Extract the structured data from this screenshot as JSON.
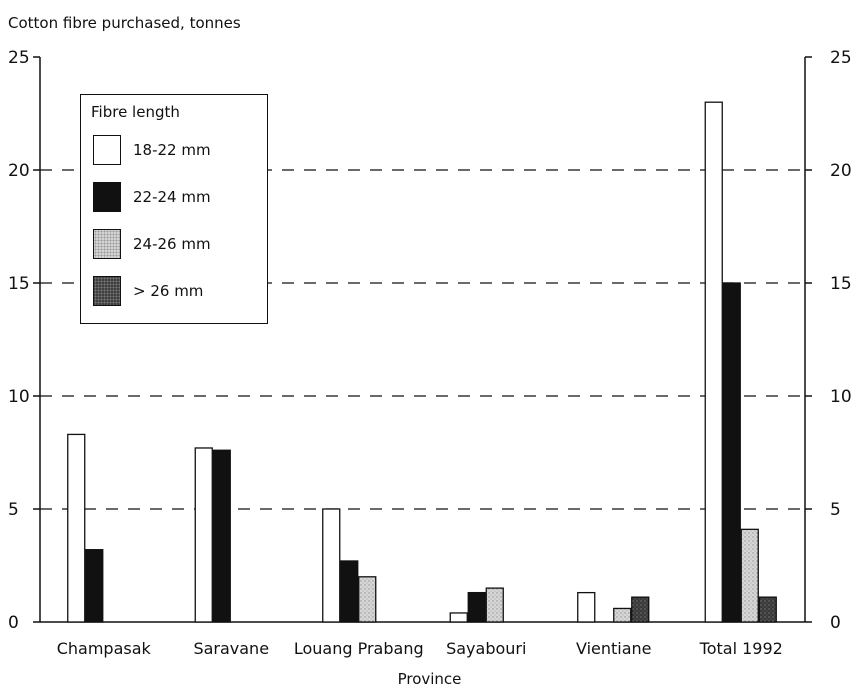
{
  "chart_data": {
    "type": "bar",
    "ylabel": "Cotton fibre purchased, tonnes",
    "xlabel": "Province",
    "ylim": [
      0,
      25
    ],
    "yticks": [
      0,
      5,
      10,
      15,
      20,
      25
    ],
    "grid": "dashed horizontal",
    "legend_title": "Fibre length",
    "legend_position": "top-left",
    "categories": [
      "Champasak",
      "Saravane",
      "Louang Prabang",
      "Sayabouri",
      "Vientiane",
      "Total 1992"
    ],
    "series": [
      {
        "name": "18-22 mm",
        "color": "#ffffff",
        "pattern": "white",
        "values": [
          8.3,
          7.7,
          5.0,
          0.4,
          1.3,
          23.0
        ]
      },
      {
        "name": "22-24 mm",
        "color": "#111111",
        "pattern": "black",
        "values": [
          3.2,
          7.6,
          2.7,
          1.3,
          0,
          15.0
        ]
      },
      {
        "name": "24-26 mm",
        "color": "#d4d4d4",
        "pattern": "light",
        "values": [
          0,
          0,
          2.0,
          1.5,
          0.6,
          4.1
        ]
      },
      {
        "name": "> 26 mm",
        "color": "#3f3f3f",
        "pattern": "dark",
        "values": [
          0,
          0,
          0,
          0,
          1.1,
          1.1
        ]
      }
    ]
  }
}
